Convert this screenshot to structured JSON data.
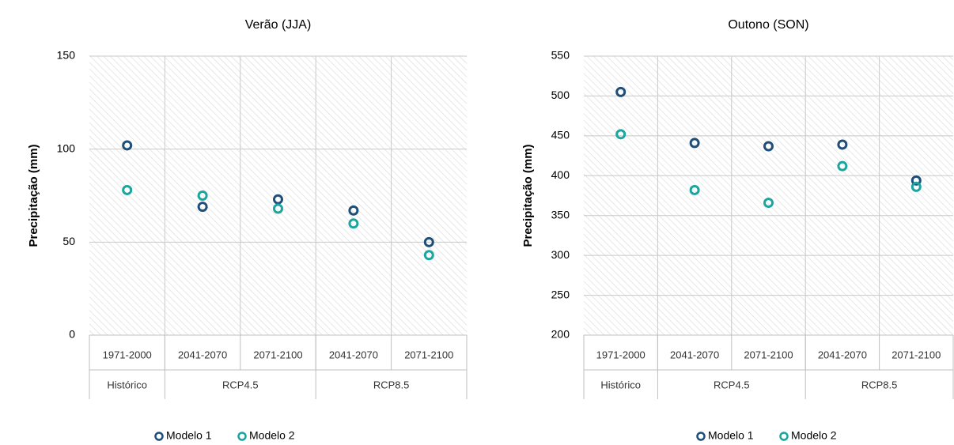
{
  "chart_data": [
    {
      "type": "scatter",
      "title": "Verão (JJA)",
      "y_label": "Precipitação (mm)",
      "categories": [
        "1971-2000",
        "2041-2070",
        "2071-2100",
        "2041-2070",
        "2071-2100"
      ],
      "groups": [
        {
          "name": "Histórico",
          "span": 1
        },
        {
          "name": "RCP4.5",
          "span": 2
        },
        {
          "name": "RCP8.5",
          "span": 2
        }
      ],
      "series": [
        {
          "name": "Modelo 1",
          "color": "#1f4e79",
          "values": [
            102,
            69,
            73,
            67,
            50
          ]
        },
        {
          "name": "Modelo 2",
          "color": "#1aa5a0",
          "values": [
            78,
            75,
            68,
            60,
            43
          ]
        }
      ],
      "ylim": [
        0,
        150
      ],
      "yticks": [
        0,
        50,
        100,
        150
      ],
      "grid": true,
      "legend": "bottom"
    },
    {
      "type": "scatter",
      "title": "Outono (SON)",
      "y_label": "Precipitação (mm)",
      "categories": [
        "1971-2000",
        "2041-2070",
        "2071-2100",
        "2041-2070",
        "2071-2100"
      ],
      "groups": [
        {
          "name": "Histórico",
          "span": 1
        },
        {
          "name": "RCP4.5",
          "span": 2
        },
        {
          "name": "RCP8.5",
          "span": 2
        }
      ],
      "series": [
        {
          "name": "Modelo 1",
          "color": "#1f4e79",
          "values": [
            505,
            441,
            437,
            439,
            394
          ]
        },
        {
          "name": "Modelo 2",
          "color": "#1aa5a0",
          "values": [
            452,
            382,
            366,
            412,
            386
          ]
        }
      ],
      "ylim": [
        200,
        550
      ],
      "yticks": [
        200,
        250,
        300,
        350,
        400,
        450,
        500,
        550
      ],
      "grid": true,
      "legend": "bottom"
    }
  ]
}
